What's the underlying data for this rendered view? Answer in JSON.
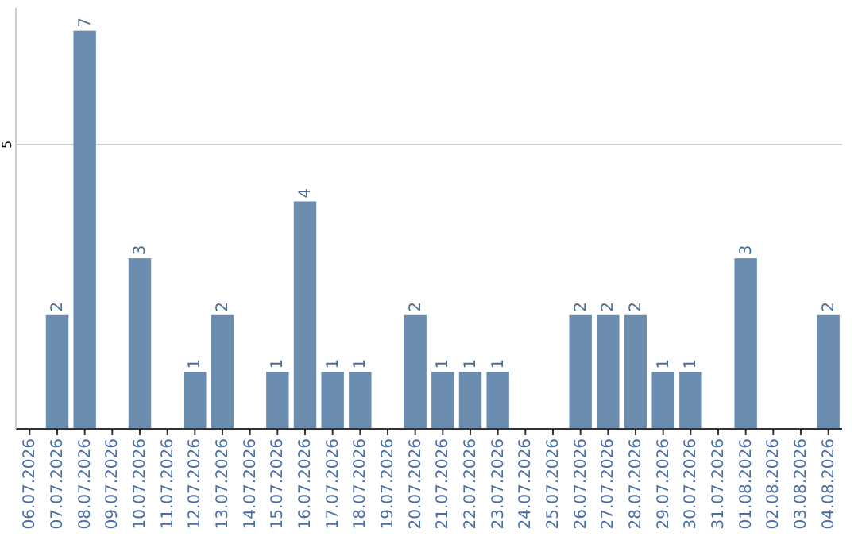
{
  "chart_data": {
    "type": "bar",
    "categories": [
      "06.07.2026",
      "07.07.2026",
      "08.07.2026",
      "09.07.2026",
      "10.07.2026",
      "11.07.2026",
      "12.07.2026",
      "13.07.2026",
      "14.07.2026",
      "15.07.2026",
      "16.07.2026",
      "17.07.2026",
      "18.07.2026",
      "19.07.2026",
      "20.07.2026",
      "21.07.2026",
      "22.07.2026",
      "23.07.2026",
      "24.07.2026",
      "25.07.2026",
      "26.07.2026",
      "27.07.2026",
      "28.07.2026",
      "29.07.2026",
      "30.07.2026",
      "31.07.2026",
      "01.08.2026",
      "02.08.2026",
      "03.08.2026",
      "04.08.2026"
    ],
    "values": [
      0,
      2,
      7,
      0,
      3,
      0,
      1,
      2,
      0,
      1,
      4,
      1,
      1,
      0,
      2,
      1,
      1,
      1,
      0,
      0,
      2,
      2,
      2,
      1,
      1,
      0,
      3,
      0,
      0,
      2
    ],
    "value_labels": [
      null,
      "2",
      "7",
      null,
      "3",
      null,
      "1",
      "2",
      null,
      "1",
      "4",
      "1",
      "1",
      null,
      "2",
      "1",
      "1",
      "1",
      null,
      null,
      "2",
      "2",
      "2",
      "1",
      "1",
      null,
      "3",
      null,
      null,
      "2"
    ],
    "color": "#6a8caf",
    "ylim": [
      0,
      7.4
    ],
    "yticks": [
      5
    ],
    "grid": "y"
  }
}
